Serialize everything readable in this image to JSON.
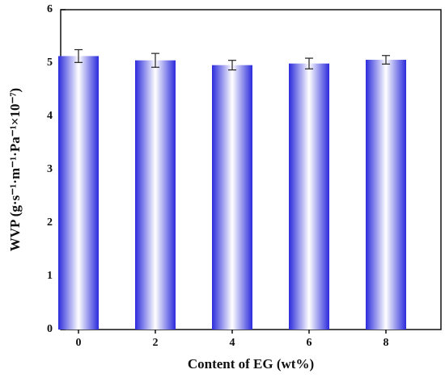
{
  "chart_data": {
    "type": "bar",
    "categories": [
      "0",
      "2",
      "4",
      "6",
      "8"
    ],
    "values": [
      5.13,
      5.05,
      4.96,
      4.99,
      5.06
    ],
    "errors": [
      0.12,
      0.13,
      0.09,
      0.1,
      0.08
    ],
    "color": "#2b2bdc",
    "xlabel": "Content of EG (wt%)",
    "ylabel": "WVP (g·s⁻¹·m⁻¹·Pa⁻¹×10⁻⁷)",
    "ylim": [
      0,
      6
    ],
    "yticks": [
      0,
      1,
      2,
      3,
      4,
      5,
      6
    ],
    "grid": false
  }
}
